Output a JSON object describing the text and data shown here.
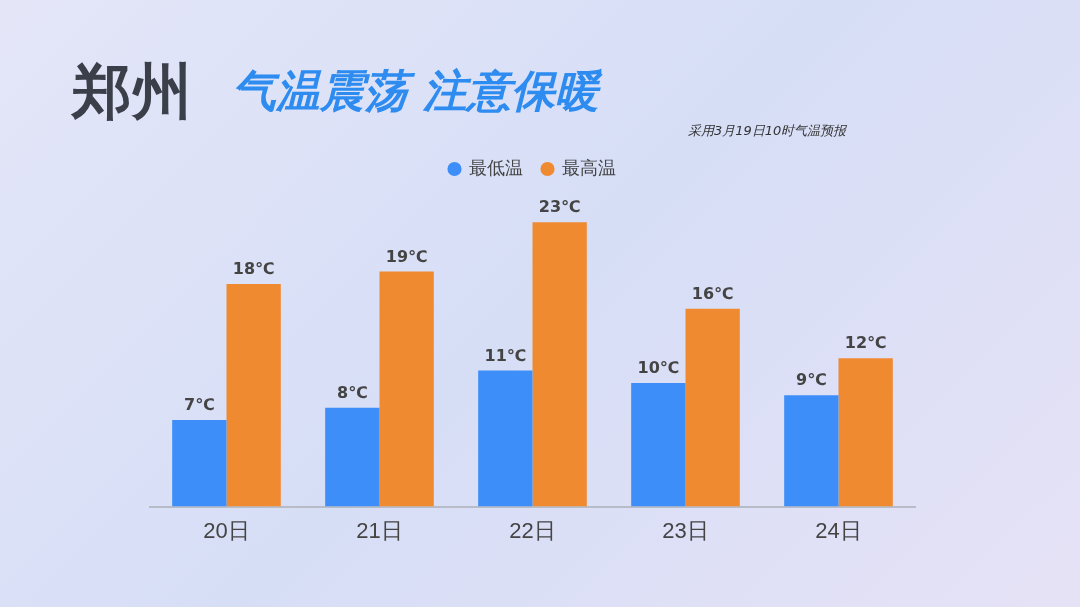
{
  "chart_data": {
    "type": "bar",
    "title": "郑州",
    "subtitle": "气温震荡 注意保暖",
    "annotations": [
      "采用3月19日10时气温预报"
    ],
    "categories": [
      "20日",
      "21日",
      "22日",
      "23日",
      "24日"
    ],
    "series": [
      {
        "name": "最低温",
        "color": "#3d8ef8",
        "values": [
          7,
          8,
          11,
          10,
          9
        ],
        "value_labels": [
          "7℃",
          "8℃",
          "11℃",
          "10℃",
          "9℃"
        ]
      },
      {
        "name": "最高温",
        "color": "#f08a30",
        "values": [
          18,
          19,
          23,
          16,
          12
        ],
        "value_labels": [
          "18℃",
          "19℃",
          "23℃",
          "16℃",
          "12℃"
        ]
      }
    ],
    "legend": "top",
    "grid": false
  }
}
